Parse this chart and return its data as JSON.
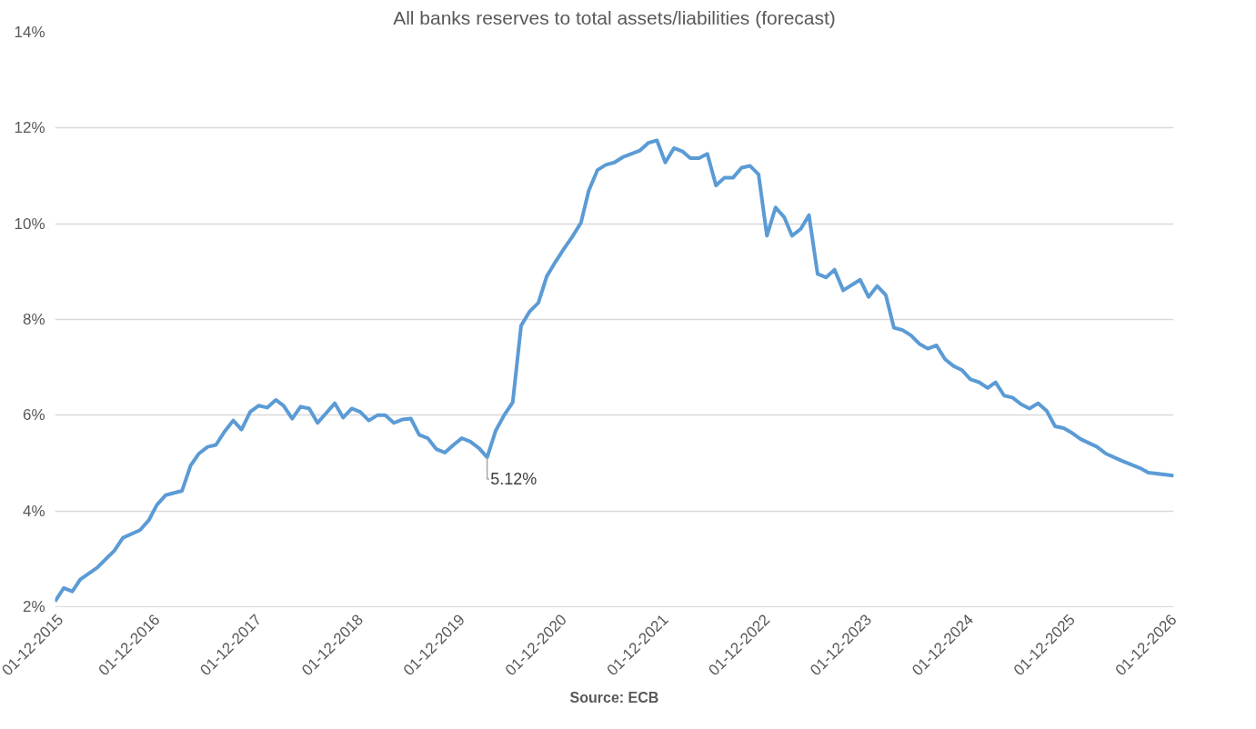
{
  "chart_data": {
    "type": "line",
    "title": "All banks reserves to total assets/liabilities (forecast)",
    "x": [
      "2015-12",
      "2016-01",
      "2016-02",
      "2016-03",
      "2016-05",
      "2016-06",
      "2016-07",
      "2016-08",
      "2016-10",
      "2016-11",
      "2016-12",
      "2017-01",
      "2017-03",
      "2017-04",
      "2017-05",
      "2017-06",
      "2017-07",
      "2017-08",
      "2017-09",
      "2017-10",
      "2017-11",
      "2017-12",
      "2018-01",
      "2018-02",
      "2018-03",
      "2018-04",
      "2018-05",
      "2018-06",
      "2018-07",
      "2018-09",
      "2018-10",
      "2018-11",
      "2018-12",
      "2019-01",
      "2019-02",
      "2019-03",
      "2019-04",
      "2019-05",
      "2019-06",
      "2019-07",
      "2019-08",
      "2019-09",
      "2019-10",
      "2019-11",
      "2019-12",
      "2020-01",
      "2020-02",
      "2020-03",
      "2020-04",
      "2020-05",
      "2020-06",
      "2020-07",
      "2020-08",
      "2020-09",
      "2020-10",
      "2020-11",
      "2020-12",
      "2021-01",
      "2021-02",
      "2021-03",
      "2021-04",
      "2021-05",
      "2021-06",
      "2021-07",
      "2021-09",
      "2021-10",
      "2021-11",
      "2021-12",
      "2022-01",
      "2022-02",
      "2022-03",
      "2022-04",
      "2022-05",
      "2022-06",
      "2022-07",
      "2022-08",
      "2022-09",
      "2022-10",
      "2022-11",
      "2022-12",
      "2023-01",
      "2023-02",
      "2023-03",
      "2023-04",
      "2023-05",
      "2023-06",
      "2023-07",
      "2023-08",
      "2023-09",
      "2023-11",
      "2023-12",
      "2024-01",
      "2024-02",
      "2024-03",
      "2024-04",
      "2024-05",
      "2024-06",
      "2024-07",
      "2024-08",
      "2024-09",
      "2024-10",
      "2024-11",
      "2024-12",
      "2025-01",
      "2025-02",
      "2025-03",
      "2025-04",
      "2025-05",
      "2025-06",
      "2025-07",
      "2025-08",
      "2025-09",
      "2025-10",
      "2025-11",
      "2025-12",
      "2026-01",
      "2026-03",
      "2026-04",
      "2026-06",
      "2026-08",
      "2026-09",
      "2026-12"
    ],
    "series": [
      {
        "color": "#5b9bd5",
        "values": [
          2.11,
          2.39,
          2.32,
          2.57,
          2.82,
          3.0,
          3.17,
          3.44,
          3.6,
          3.8,
          4.13,
          4.33,
          4.42,
          4.95,
          5.2,
          5.34,
          5.38,
          5.66,
          5.89,
          5.7,
          6.07,
          6.2,
          6.16,
          6.32,
          6.2,
          5.93,
          6.18,
          6.14,
          5.84,
          6.25,
          5.95,
          6.14,
          6.07,
          5.89,
          6.0,
          6.0,
          5.84,
          5.91,
          5.93,
          5.59,
          5.52,
          5.29,
          5.22,
          5.38,
          5.52,
          5.45,
          5.31,
          5.12,
          5.68,
          6.0,
          6.27,
          7.87,
          8.17,
          8.35,
          8.9,
          9.2,
          9.47,
          9.73,
          10.02,
          10.69,
          11.12,
          11.23,
          11.28,
          11.39,
          11.53,
          11.69,
          11.74,
          11.28,
          11.58,
          11.51,
          11.37,
          11.37,
          11.46,
          10.8,
          10.96,
          10.96,
          11.17,
          11.21,
          11.03,
          9.75,
          10.34,
          10.14,
          9.75,
          9.89,
          10.18,
          8.95,
          8.88,
          9.04,
          8.61,
          8.83,
          8.47,
          8.7,
          8.51,
          7.83,
          7.78,
          7.67,
          7.49,
          7.39,
          7.46,
          7.17,
          7.03,
          6.94,
          6.75,
          6.69,
          6.57,
          6.69,
          6.41,
          6.37,
          6.23,
          6.14,
          6.25,
          6.09,
          5.77,
          5.73,
          5.63,
          5.5,
          5.34,
          5.2,
          5.04,
          4.9,
          4.8,
          4.74
        ]
      }
    ],
    "xlim": [
      "2015-12",
      "2026-12"
    ],
    "xticks": [
      {
        "value": "2015-12-01",
        "label": "01-12-2015"
      },
      {
        "value": "2016-12-01",
        "label": "01-12-2016"
      },
      {
        "value": "2017-12-01",
        "label": "01-12-2017"
      },
      {
        "value": "2018-12-01",
        "label": "01-12-2018"
      },
      {
        "value": "2019-12-01",
        "label": "01-12-2019"
      },
      {
        "value": "2020-12-01",
        "label": "01-12-2020"
      },
      {
        "value": "2021-12-01",
        "label": "01-12-2021"
      },
      {
        "value": "2022-12-01",
        "label": "01-12-2022"
      },
      {
        "value": "2023-12-01",
        "label": "01-12-2023"
      },
      {
        "value": "2024-12-01",
        "label": "01-12-2024"
      },
      {
        "value": "2025-12-01",
        "label": "01-12-2025"
      },
      {
        "value": "2026-12-01",
        "label": "01-12-2026"
      }
    ],
    "ylim": [
      2,
      14
    ],
    "yticks": [
      {
        "value": 2,
        "label": "2%"
      },
      {
        "value": 4,
        "label": "4%"
      },
      {
        "value": 6,
        "label": "6%"
      },
      {
        "value": 8,
        "label": "8%"
      },
      {
        "value": 10,
        "label": "10%"
      },
      {
        "value": 12,
        "label": "12%"
      },
      {
        "value": 14,
        "label": "14%"
      }
    ],
    "annotations": [
      {
        "text": "5.12%",
        "x": "2020-03",
        "y": 5.12
      },
      "Source: ECB"
    ],
    "grid": "y",
    "line_style": "solid"
  }
}
